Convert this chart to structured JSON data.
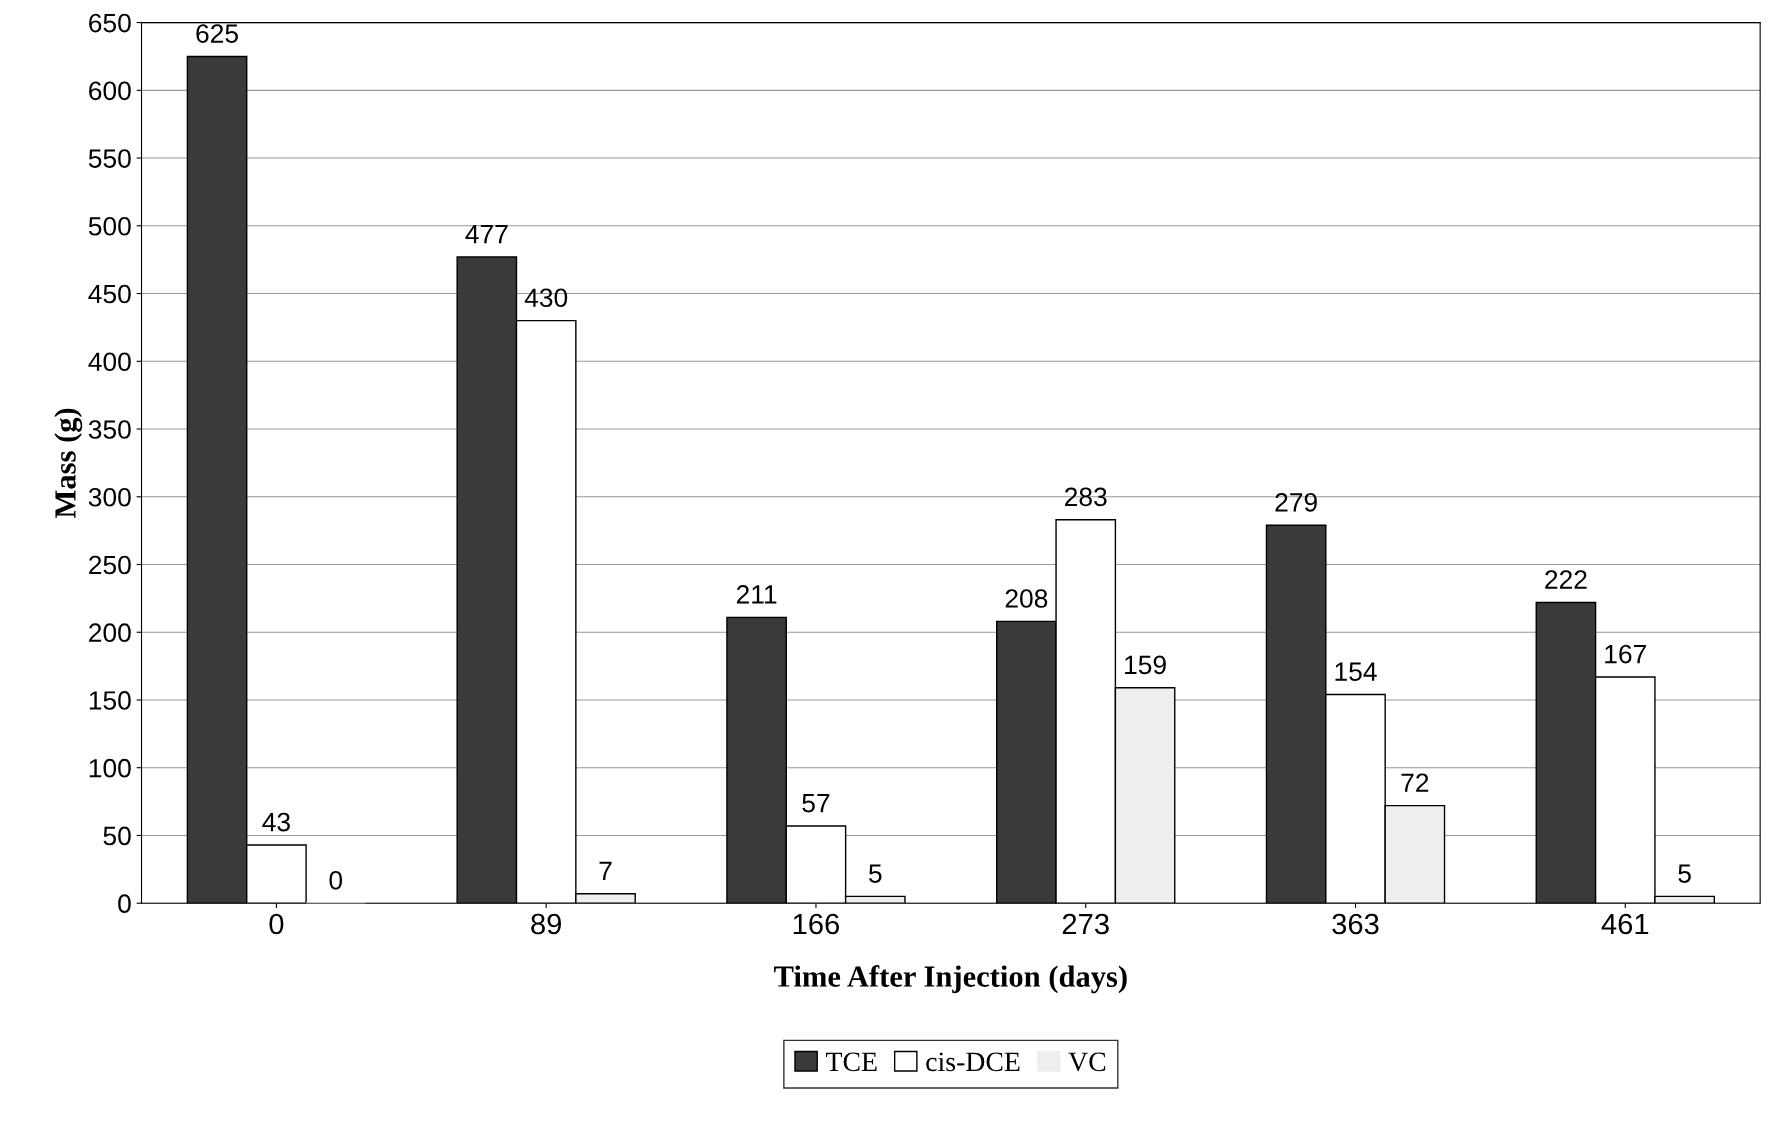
{
  "chart_data": {
    "type": "bar",
    "xlabel": "Time After Injection (days)",
    "ylabel": "Mass (g)",
    "categories": [
      "0",
      "89",
      "166",
      "273",
      "363",
      "461"
    ],
    "series": [
      {
        "name": "TCE",
        "color": "#3a3a3a",
        "values": [
          625,
          477,
          211,
          208,
          279,
          222
        ]
      },
      {
        "name": "cis-DCE",
        "color": "#ffffff",
        "values": [
          43,
          430,
          57,
          283,
          154,
          167
        ]
      },
      {
        "name": "VC",
        "color": "#eeeeee",
        "values": [
          0,
          7,
          5,
          159,
          72,
          5
        ]
      }
    ],
    "ylim": [
      0,
      650
    ],
    "yticks": [
      0,
      50,
      100,
      150,
      200,
      250,
      300,
      350,
      400,
      450,
      500,
      550,
      600,
      650
    ],
    "grid": "y",
    "legend": "bottom",
    "data_labels": true
  }
}
